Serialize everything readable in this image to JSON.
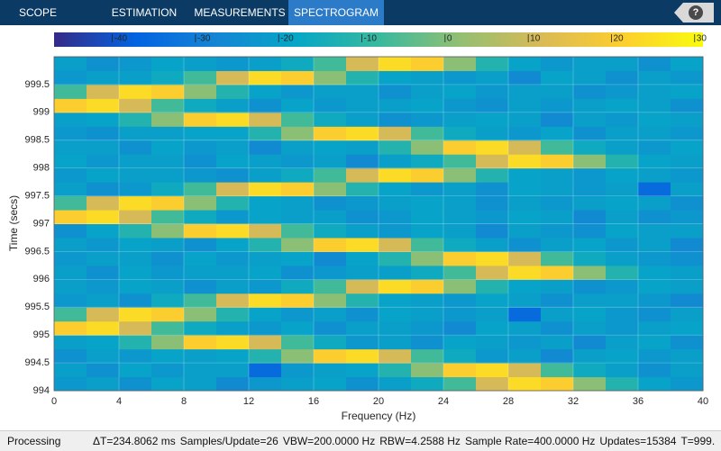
{
  "toolbar": {
    "tabs": [
      "SCOPE",
      "ESTIMATION",
      "MEASUREMENTS",
      "SPECTROGRAM"
    ],
    "help": "?"
  },
  "status": {
    "state": "Processing",
    "items": [
      "ΔT=234.8062 ms",
      "Samples/Update=26",
      "VBW=200.0000 Hz",
      "RBW=4.2588 Hz",
      "Sample Rate=400.0000 Hz",
      "Updates=15384",
      "T=999."
    ]
  },
  "chart_data": {
    "type": "heatmap",
    "xlabel": "Frequency (Hz)",
    "ylabel": "Time (secs)",
    "colormap": "parula",
    "grid": true,
    "xlim": [
      0,
      40
    ],
    "xticks": [
      0,
      4,
      8,
      12,
      16,
      20,
      24,
      28,
      32,
      36,
      40
    ],
    "ylim": [
      994,
      1000
    ],
    "yticks": [
      994,
      994.5,
      995,
      995.5,
      996,
      996.5,
      997,
      997.5,
      998,
      998.5,
      999,
      999.5
    ],
    "colorbar": {
      "lim": [
        -47,
        31
      ],
      "ticks": [
        -40,
        -30,
        -20,
        -10,
        0,
        10,
        20,
        30
      ]
    },
    "x": [
      1,
      3,
      5,
      7,
      9,
      11,
      13,
      15,
      17,
      19,
      21,
      23,
      25,
      27,
      29,
      31,
      33,
      35,
      37,
      39
    ],
    "y": [
      994.125,
      994.375,
      994.625,
      994.875,
      995.125,
      995.375,
      995.625,
      995.875,
      996.125,
      996.375,
      996.625,
      996.875,
      997.125,
      997.375,
      997.625,
      997.875,
      998.125,
      998.375,
      998.625,
      998.875,
      999.125,
      999.375,
      999.625,
      999.875
    ],
    "values": [
      [
        -22,
        -20,
        -24,
        -19,
        -20,
        -26,
        -22,
        -20,
        -19,
        -24,
        -20,
        -16,
        -7,
        11,
        24,
        21,
        1,
        -12,
        -19,
        -22
      ],
      [
        -20,
        -24,
        -19,
        -22,
        -20,
        -20,
        -35,
        -22,
        -20,
        -19,
        -12,
        1,
        21,
        24,
        11,
        -7,
        -16,
        -20,
        -24,
        -20
      ],
      [
        -24,
        -20,
        -22,
        -19,
        -20,
        -19,
        -12,
        1,
        21,
        24,
        11,
        -7,
        -16,
        -22,
        -20,
        -26,
        -20,
        -19,
        -22,
        -20
      ],
      [
        -20,
        -19,
        -12,
        1,
        21,
        24,
        11,
        -7,
        -16,
        -22,
        -20,
        -24,
        -19,
        -20,
        -22,
        -20,
        -26,
        -20,
        -19,
        -24
      ],
      [
        21,
        24,
        11,
        -7,
        -16,
        -20,
        -22,
        -19,
        -24,
        -20,
        -20,
        -22,
        -26,
        -19,
        -20,
        -24,
        -20,
        -22,
        -20,
        -19
      ],
      [
        -7,
        11,
        24,
        21,
        1,
        -12,
        -19,
        -22,
        -20,
        -24,
        -19,
        -20,
        -22,
        -20,
        -35,
        -20,
        -19,
        -22,
        -24,
        -20
      ],
      [
        -22,
        -20,
        -24,
        -16,
        -7,
        11,
        24,
        21,
        1,
        -12,
        -19,
        -20,
        -22,
        -19,
        -20,
        -24,
        -20,
        -20,
        -22,
        -26
      ],
      [
        -20,
        -22,
        -19,
        -20,
        -24,
        -20,
        -22,
        -16,
        -7,
        11,
        24,
        21,
        1,
        -12,
        -19,
        -20,
        -24,
        -22,
        -19,
        -20
      ],
      [
        -20,
        -24,
        -19,
        -22,
        -20,
        -20,
        -19,
        -24,
        -22,
        -20,
        -20,
        -16,
        -7,
        11,
        24,
        21,
        1,
        -12,
        -19,
        -20
      ],
      [
        -22,
        -20,
        -20,
        -24,
        -19,
        -22,
        -20,
        -19,
        -26,
        -19,
        -12,
        1,
        21,
        24,
        11,
        -7,
        -16,
        -20,
        -22,
        -24
      ],
      [
        -20,
        -22,
        -19,
        -20,
        -24,
        -19,
        -12,
        1,
        21,
        24,
        11,
        -7,
        -16,
        -20,
        -24,
        -20,
        -19,
        -22,
        -20,
        -26
      ],
      [
        -24,
        -19,
        -12,
        1,
        21,
        24,
        11,
        -7,
        -16,
        -20,
        -22,
        -19,
        -20,
        -26,
        -20,
        -22,
        -24,
        -19,
        -20,
        -20
      ],
      [
        21,
        24,
        11,
        -7,
        -16,
        -22,
        -19,
        -20,
        -20,
        -24,
        -22,
        -19,
        -20,
        -22,
        -19,
        -20,
        -26,
        -20,
        -24,
        -22
      ],
      [
        -7,
        11,
        24,
        21,
        1,
        -12,
        -19,
        -20,
        -24,
        -22,
        -20,
        -19,
        -20,
        -24,
        -20,
        -22,
        -20,
        -19,
        -20,
        -24
      ],
      [
        -20,
        -24,
        -22,
        -16,
        -7,
        11,
        24,
        21,
        1,
        -12,
        -19,
        -22,
        -20,
        -24,
        -19,
        -20,
        -22,
        -20,
        -35,
        -20
      ],
      [
        -22,
        -19,
        -20,
        -20,
        -22,
        -24,
        -20,
        -16,
        -7,
        11,
        24,
        21,
        1,
        -12,
        -19,
        -20,
        -22,
        -19,
        -20,
        -22
      ],
      [
        -19,
        -22,
        -20,
        -20,
        -24,
        -19,
        -20,
        -22,
        -20,
        -26,
        -20,
        -16,
        -7,
        11,
        24,
        21,
        1,
        -12,
        -19,
        -20
      ],
      [
        -20,
        -20,
        -24,
        -19,
        -22,
        -20,
        -26,
        -20,
        -19,
        -20,
        -12,
        1,
        21,
        24,
        11,
        -7,
        -16,
        -20,
        -22,
        -19
      ],
      [
        -22,
        -24,
        -20,
        -20,
        -19,
        -19,
        -12,
        1,
        21,
        24,
        11,
        -7,
        -16,
        -20,
        -22,
        -19,
        -24,
        -20,
        -20,
        -22
      ],
      [
        -20,
        -19,
        -12,
        1,
        21,
        24,
        11,
        -7,
        -16,
        -20,
        -24,
        -22,
        -20,
        -19,
        -20,
        -26,
        -20,
        -22,
        -19,
        -20
      ],
      [
        21,
        24,
        11,
        -7,
        -16,
        -20,
        -24,
        -19,
        -22,
        -20,
        -20,
        -19,
        -22,
        -24,
        -20,
        -22,
        -20,
        -19,
        -20,
        -24
      ],
      [
        -7,
        11,
        24,
        21,
        1,
        -12,
        -19,
        -22,
        -20,
        -20,
        -24,
        -20,
        -19,
        -22,
        -20,
        -20,
        -24,
        -22,
        -20,
        -19
      ],
      [
        -22,
        -20,
        -20,
        -16,
        -7,
        11,
        24,
        21,
        1,
        -12,
        -19,
        -20,
        -22,
        -20,
        -26,
        -19,
        -20,
        -24,
        -20,
        -22
      ],
      [
        -20,
        -24,
        -22,
        -19,
        -20,
        -22,
        -20,
        -16,
        -7,
        11,
        24,
        21,
        1,
        -12,
        -19,
        -22,
        -20,
        -20,
        -24,
        -19
      ]
    ]
  }
}
